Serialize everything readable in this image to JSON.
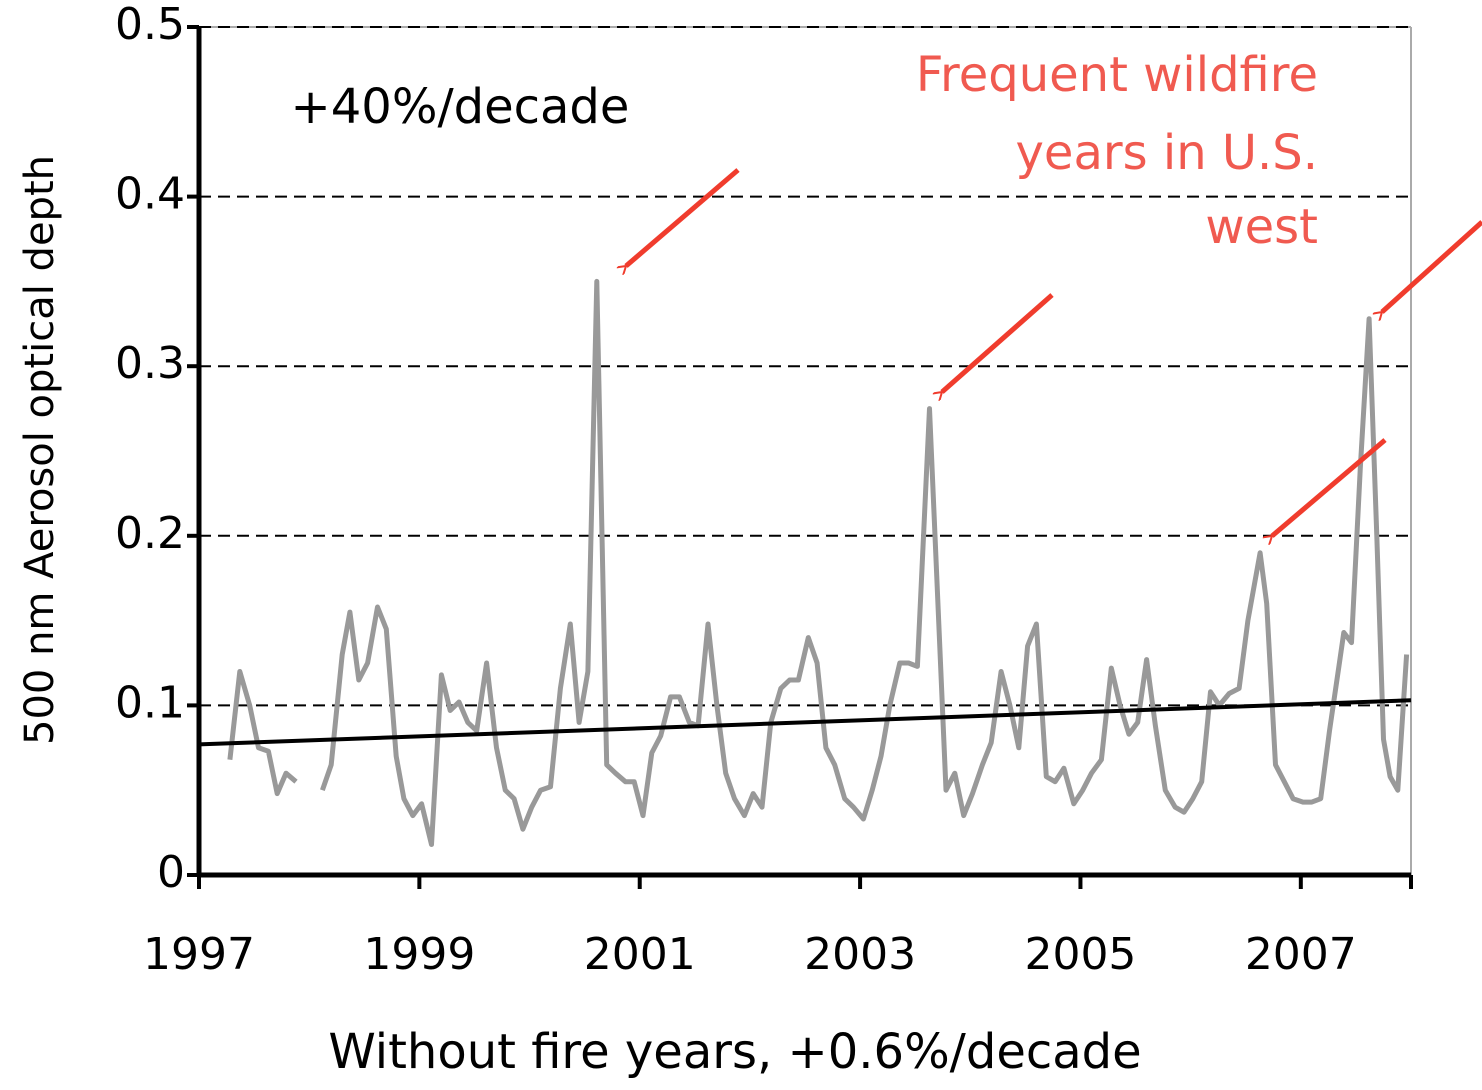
{
  "chart_data": {
    "type": "line",
    "annotation": "+40%/decade",
    "annotation_lines": [
      "Frequent wildfire",
      "years in U.S.",
      "west"
    ],
    "x_label": "Without fire years, +0.6%/decade",
    "y_label": "500 nm Aerosol optical depth",
    "xlim": [
      1997,
      2008
    ],
    "xticks": [
      1997,
      1999,
      2001,
      2003,
      2005,
      2007
    ],
    "ylim": [
      0,
      0.5
    ],
    "yticks": [
      0,
      0.1,
      0.2,
      0.3,
      0.4,
      0.5
    ],
    "grid": true,
    "series": [
      {
        "color": "#999999",
        "x": [
          1997.28,
          1997.37,
          1997.46,
          1997.54,
          1997.63,
          1997.71,
          1997.79,
          1997.88,
          1998.0,
          1998.12,
          1998.2,
          1998.3,
          1998.37,
          1998.45,
          1998.53,
          1998.62,
          1998.7,
          1998.79,
          1998.86,
          1998.94,
          1999.02,
          1999.11,
          1999.2,
          1999.28,
          1999.36,
          1999.44,
          1999.52,
          1999.61,
          1999.7,
          1999.78,
          1999.86,
          1999.94,
          2000.02,
          2000.1,
          2000.19,
          2000.28,
          2000.37,
          2000.45,
          2000.53,
          2000.61,
          2000.7,
          2000.78,
          2000.87,
          2000.95,
          2001.03,
          2001.11,
          2001.19,
          2001.28,
          2001.36,
          2001.45,
          2001.53,
          2001.62,
          2001.7,
          2001.78,
          2001.86,
          2001.95,
          2002.03,
          2002.11,
          2002.19,
          2002.28,
          2002.36,
          2002.44,
          2002.53,
          2002.61,
          2002.69,
          2002.77,
          2002.86,
          2002.94,
          2003.03,
          2003.11,
          2003.19,
          2003.27,
          2003.36,
          2003.44,
          2003.52,
          2003.63,
          2003.78,
          2003.86,
          2003.94,
          2004.02,
          2004.11,
          2004.19,
          2004.28,
          2004.36,
          2004.44,
          2004.52,
          2004.6,
          2004.69,
          2004.77,
          2004.85,
          2004.94,
          2005.02,
          2005.1,
          2005.19,
          2005.28,
          2005.36,
          2005.44,
          2005.52,
          2005.6,
          2005.68,
          2005.77,
          2005.86,
          2005.94,
          2006.02,
          2006.1,
          2006.18,
          2006.26,
          2006.35,
          2006.44,
          2006.52,
          2006.63,
          2006.69,
          2006.77,
          2006.85,
          2006.93,
          2007.02,
          2007.1,
          2007.18,
          2007.26,
          2007.35,
          2007.39,
          2007.46,
          2007.54,
          2007.62,
          2007.69,
          2007.75,
          2007.81,
          2007.88,
          2007.96
        ],
        "values": [
          0.068,
          0.12,
          0.1,
          0.075,
          0.073,
          0.048,
          0.06,
          0.055,
          null,
          0.05,
          0.065,
          0.13,
          0.155,
          0.115,
          0.125,
          0.158,
          0.145,
          0.07,
          0.045,
          0.035,
          0.042,
          0.018,
          0.118,
          0.097,
          0.102,
          0.09,
          0.085,
          0.125,
          0.075,
          0.05,
          0.045,
          0.027,
          0.04,
          0.05,
          0.052,
          0.11,
          0.148,
          0.09,
          0.12,
          0.35,
          0.065,
          0.06,
          0.055,
          0.055,
          0.035,
          0.072,
          0.082,
          0.105,
          0.105,
          0.09,
          0.088,
          0.148,
          0.1,
          0.06,
          0.045,
          0.035,
          0.048,
          0.04,
          0.09,
          0.11,
          0.115,
          0.115,
          0.14,
          0.125,
          0.075,
          0.065,
          0.045,
          0.04,
          0.033,
          0.05,
          0.07,
          0.1,
          0.125,
          0.125,
          0.123,
          0.275,
          0.05,
          0.06,
          0.035,
          0.048,
          0.065,
          0.078,
          0.12,
          0.1,
          0.075,
          0.135,
          0.148,
          0.058,
          0.055,
          0.063,
          0.042,
          0.05,
          0.06,
          0.068,
          0.122,
          0.1,
          0.083,
          0.09,
          0.127,
          0.088,
          0.05,
          0.04,
          0.037,
          0.045,
          0.055,
          0.108,
          0.1,
          0.107,
          0.11,
          0.15,
          0.19,
          0.16,
          0.065,
          0.055,
          0.045,
          0.043,
          0.043,
          0.045,
          0.085,
          0.125,
          0.143,
          0.137,
          0.24,
          0.328,
          0.2,
          0.08,
          0.058,
          0.05,
          0.13
        ]
      },
      {
        "color": "#000000",
        "x": [
          1997,
          2008
        ],
        "values": [
          0.077,
          0.103
        ]
      }
    ]
  }
}
